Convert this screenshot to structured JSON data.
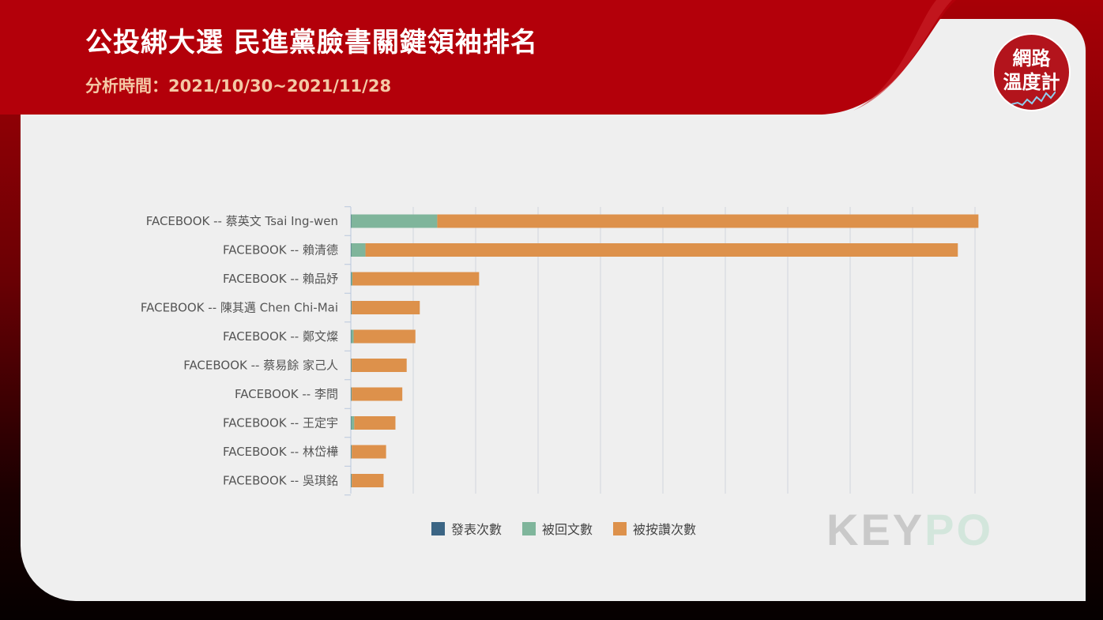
{
  "header": {
    "title": "公投綁大選 民進黨臉書關鍵領袖排名",
    "subtitle": "分析時間：2021/10/30~2021/11/28"
  },
  "badge": {
    "line1": "網路",
    "line2": "溫度計"
  },
  "watermark": {
    "text_main": "KEY",
    "text_accent": "PO"
  },
  "colors": {
    "publish": "#3b6584",
    "comments": "#7fb59b",
    "likes": "#dd914b",
    "header_red": "#b3000a",
    "grid": "#d2d6de"
  },
  "chart_data": {
    "type": "bar",
    "orientation": "horizontal",
    "stacked": true,
    "title": "",
    "xlabel": "",
    "ylabel": "",
    "xlim": [
      0,
      100
    ],
    "x_axis_tick_labels_visible": false,
    "grid": true,
    "legend_position": "bottom-center",
    "categories": [
      "FACEBOOK -- 蔡英文 Tsai Ing-wen",
      "FACEBOOK -- 賴清德",
      "FACEBOOK -- 賴品妤",
      "FACEBOOK -- 陳其邁 Chen Chi-Mai",
      "FACEBOOK -- 鄭文燦",
      "FACEBOOK -- 蔡易餘 家己人",
      "FACEBOOK -- 李問",
      "FACEBOOK -- 王定宇",
      "FACEBOOK -- 林岱樺",
      "FACEBOOK -- 吳琪銘"
    ],
    "series": [
      {
        "name": "發表次數",
        "color": "#3b6584",
        "values": [
          0.05,
          0.05,
          0.05,
          0.05,
          0.05,
          0.05,
          0.05,
          0.05,
          0.05,
          0.05
        ]
      },
      {
        "name": "被回文數",
        "color": "#7fb59b",
        "values": [
          13.8,
          2.3,
          0.2,
          0.1,
          0.4,
          0.1,
          0.1,
          0.5,
          0.1,
          0.1
        ]
      },
      {
        "name": "被按讚次數",
        "color": "#dd914b",
        "values": [
          86.7,
          94.9,
          20.3,
          10.9,
          9.9,
          8.8,
          8.1,
          6.6,
          5.5,
          5.1
        ]
      }
    ]
  }
}
